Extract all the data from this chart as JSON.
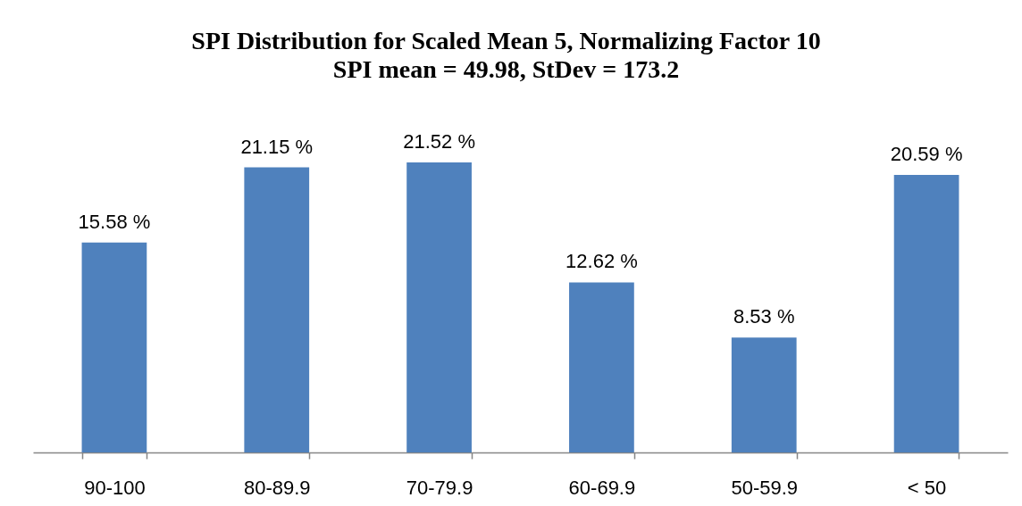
{
  "chart_data": {
    "type": "bar",
    "title": "SPI Distribution for Scaled Mean 5, Normalizing Factor 10",
    "subtitle": "SPI mean = 49.98, StDev = 173.2",
    "categories": [
      "90-100",
      "80-89.9",
      "70-79.9",
      "60-69.9",
      "50-59.9",
      "< 50"
    ],
    "values": [
      15.58,
      21.15,
      21.52,
      12.62,
      8.53,
      20.59
    ],
    "color": "#4f81bd",
    "value_labels": [
      "15.58 %",
      "21.15 %",
      "21.52 %",
      "12.62 %",
      "8.53 %",
      "20.59 %"
    ]
  }
}
